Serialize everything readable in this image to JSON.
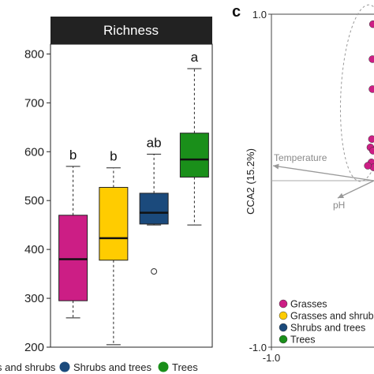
{
  "chart_data": [
    {
      "type": "box",
      "title": "Richness",
      "ylim": [
        200,
        820
      ],
      "yticks": [
        200,
        300,
        400,
        500,
        600,
        700,
        800
      ],
      "categories": [
        "Grasses",
        "Grasses and shrubs",
        "Shrubs and trees",
        "Trees"
      ],
      "colors": [
        "#cc1e85",
        "#ffcc00",
        "#1b4a7c",
        "#1a8f1a"
      ],
      "boxes": [
        {
          "category": "Grasses",
          "whisker_low": 260,
          "q1": 295,
          "median": 380,
          "q3": 470,
          "whisker_high": 570,
          "outliers": [],
          "letter": "b"
        },
        {
          "category": "Grasses and shrubs",
          "whisker_low": 205,
          "q1": 378,
          "median": 423,
          "q3": 527,
          "whisker_high": 567,
          "outliers": [],
          "letter": "b"
        },
        {
          "category": "Shrubs and trees",
          "whisker_low": 450,
          "q1": 452,
          "median": 475,
          "q3": 515,
          "whisker_high": 595,
          "outliers": [
            355
          ],
          "letter": "ab"
        },
        {
          "category": "Trees",
          "whisker_low": 450,
          "q1": 548,
          "median": 584,
          "q3": 638,
          "whisker_high": 770,
          "outliers": [],
          "letter": "a"
        }
      ],
      "legend": {
        "placement": "bottom",
        "entries": [
          {
            "label": "s and shrubs",
            "color": "#ffcc00"
          },
          {
            "label": "Shrubs and trees",
            "color": "#1b4a7c"
          },
          {
            "label": "Trees",
            "color": "#1a8f1a"
          }
        ]
      }
    },
    {
      "type": "scatter",
      "panel_label": "c",
      "ylabel": "CCA2 (15.2%)",
      "xlim": [
        -1.0,
        1.0
      ],
      "ylim": [
        -1.0,
        1.0
      ],
      "xticks": [
        -1.0
      ],
      "yticks": [
        1.0,
        -1.0
      ],
      "reference_lines": {
        "x": 0,
        "y": 0
      },
      "arrows": [
        {
          "label": "Temperature",
          "x": -0.45,
          "y": 0.0
        },
        {
          "label": "pH",
          "x": -0.3,
          "y": -0.06
        }
      ],
      "series": [
        {
          "name": "Grasses",
          "color": "#cc1e85",
          "x": [
            0.98,
            0.97,
            0.97,
            0.93,
            0.96,
            0.98,
            0.95,
            0.99,
            0.88
          ],
          "y": [
            0.94,
            0.73,
            0.55,
            0.2,
            0.25,
            0.18,
            0.11,
            0.08,
            0.09
          ]
        },
        {
          "name": "Grasses and shrub",
          "color": "#ffcc00",
          "x": [],
          "y": []
        },
        {
          "name": "Shrubs and trees",
          "color": "#1b4a7c",
          "x": [],
          "y": []
        },
        {
          "name": "Trees",
          "color": "#1a8f1a",
          "x": [],
          "y": []
        }
      ],
      "ellipse": {
        "series": "Grasses",
        "style": "dashed"
      },
      "legend": {
        "placement": "bottom-left"
      }
    }
  ]
}
